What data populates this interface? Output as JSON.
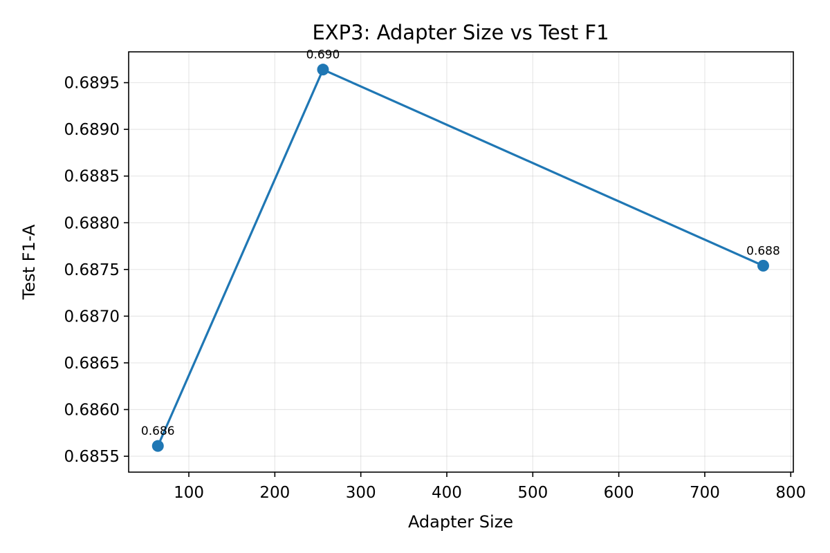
{
  "chart_data": {
    "type": "line",
    "title": "EXP3: Adapter Size vs Test F1",
    "xlabel": "Adapter Size",
    "ylabel": "Test F1-A",
    "xlim": [
      30,
      803
    ],
    "ylim": [
      0.68533,
      0.68983
    ],
    "xticks": [
      100,
      200,
      300,
      400,
      500,
      600,
      700,
      800
    ],
    "yticks": [
      0.6855,
      0.686,
      0.6865,
      0.687,
      0.6875,
      0.688,
      0.6885,
      0.689,
      0.6895
    ],
    "xtick_labels": [
      "100",
      "200",
      "300",
      "400",
      "500",
      "600",
      "700",
      "800"
    ],
    "ytick_labels": [
      "0.6855",
      "0.6860",
      "0.6865",
      "0.6870",
      "0.6875",
      "0.6880",
      "0.6885",
      "0.6890",
      "0.6895"
    ],
    "grid": true,
    "series": [
      {
        "x": [
          64,
          256,
          768
        ],
        "y": [
          0.68561,
          0.68964,
          0.68754
        ],
        "labels": [
          "0.686",
          "0.690",
          "0.688"
        ],
        "color": "#1f77b4",
        "marker": "circle"
      }
    ]
  }
}
